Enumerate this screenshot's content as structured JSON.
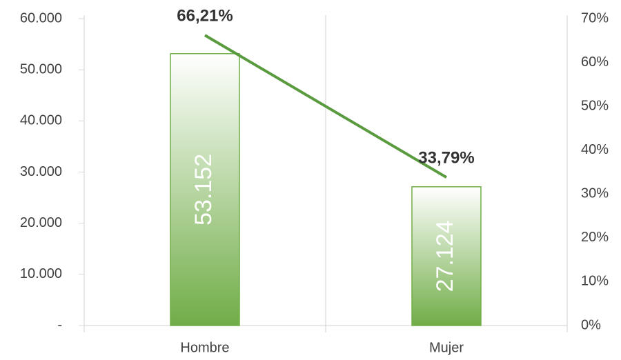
{
  "chart_data": {
    "type": "bar",
    "categories": [
      "Hombre",
      "Mujer"
    ],
    "series": [
      {
        "type": "bar",
        "color": "#70ad47",
        "values": [
          53152,
          27124
        ],
        "value_labels": [
          "53.152",
          "27.124"
        ]
      },
      {
        "type": "line",
        "axis": "y2",
        "color": "#5b9b3f",
        "values": [
          66.21,
          33.79
        ],
        "value_labels": [
          "66,21%",
          "33,79%"
        ]
      }
    ],
    "ylim": [
      0,
      60000
    ],
    "yticks": [
      {
        "value": 0,
        "label": "-"
      },
      {
        "value": 10000,
        "label": "10.000"
      },
      {
        "value": 20000,
        "label": "20.000"
      },
      {
        "value": 30000,
        "label": "30.000"
      },
      {
        "value": 40000,
        "label": "40.000"
      },
      {
        "value": 50000,
        "label": "50.000"
      },
      {
        "value": 60000,
        "label": "60.000"
      }
    ],
    "y2lim": [
      0,
      70
    ],
    "y2ticks": [
      {
        "value": 0,
        "label": "0%"
      },
      {
        "value": 10,
        "label": "10%"
      },
      {
        "value": 20,
        "label": "20%"
      },
      {
        "value": 30,
        "label": "30%"
      },
      {
        "value": 40,
        "label": "40%"
      },
      {
        "value": 50,
        "label": "50%"
      },
      {
        "value": 60,
        "label": "60%"
      },
      {
        "value": 70,
        "label": "70%"
      }
    ]
  }
}
